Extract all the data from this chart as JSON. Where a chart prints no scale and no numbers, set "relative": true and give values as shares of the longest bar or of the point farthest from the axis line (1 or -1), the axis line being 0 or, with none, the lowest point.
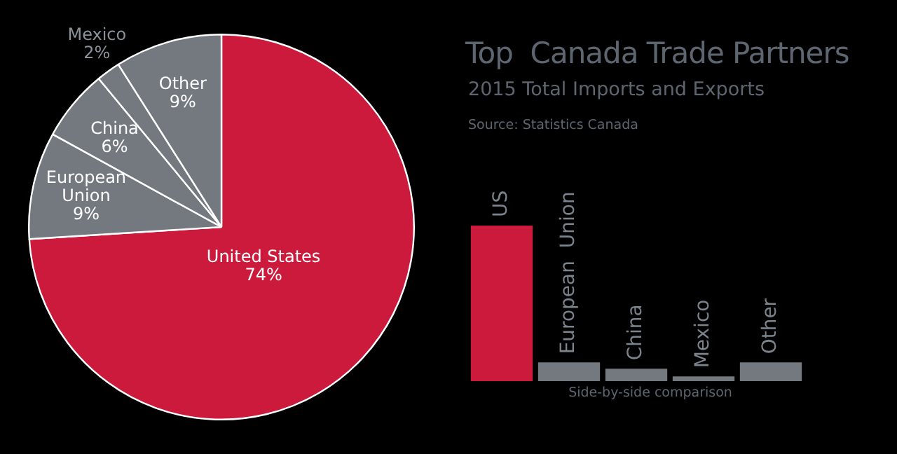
{
  "chart_data": [
    {
      "type": "pie",
      "categories": [
        "United States",
        "European Union",
        "China",
        "Mexico",
        "Other"
      ],
      "values": [
        74,
        9,
        6,
        2,
        9
      ],
      "colors": [
        "#cc1a3c",
        "#73797f",
        "#73797f",
        "#73797f",
        "#73797f"
      ],
      "value_labels": [
        "74%",
        "9%",
        "6%",
        "2%",
        "9%"
      ]
    },
    {
      "type": "bar",
      "title": "Top  Canada Trade Partners",
      "subtitle": "2015 Total Imports and Exports",
      "annotations": [
        "Source: Statistics Canada"
      ],
      "xlabel": "Side-by-side comparison",
      "relative": true,
      "categories": [
        "US",
        "European  Union",
        "China",
        "Mexico",
        "Other"
      ],
      "values": [
        1,
        0.12,
        0.08,
        0.03,
        0.12
      ],
      "colors": [
        "#cc1a3c",
        "#73797f",
        "#73797f",
        "#73797f",
        "#73797f"
      ]
    }
  ]
}
